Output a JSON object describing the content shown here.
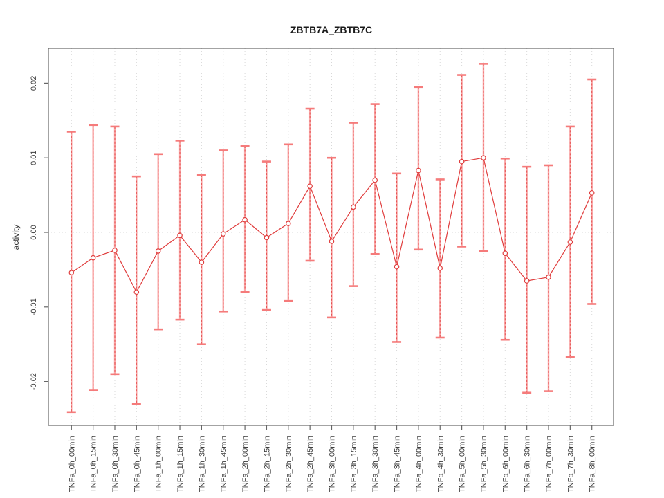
{
  "chart_data": {
    "type": "line",
    "title": "ZBTB7A_ZBTB7C",
    "xlabel": "",
    "ylabel": "activity",
    "ylim": [
      -0.025,
      0.024
    ],
    "yticks": [
      -0.02,
      -0.01,
      0.0,
      0.01,
      0.02
    ],
    "ytick_labels": [
      "-0.02",
      "-0.01",
      "0.00",
      "0.01",
      "0.02"
    ],
    "grid": "vertical dotted gridline at each category; dotted horizontal reference line at y=0",
    "legend": "none",
    "marker": "open-circle",
    "error_bars": true,
    "colors": {
      "series_line": "#e03c3c",
      "error_bar": "#f57b7b",
      "error_bar_fill": "#f9a8a8",
      "gridline": "#d8d8d8",
      "frame": "#666666",
      "tick_label": "#3d3d3d",
      "title": "#1a1a1a"
    },
    "categories": [
      "TNFa_0h_00min",
      "TNFa_0h_15min",
      "TNFa_0h_30min",
      "TNFa_0h_45min",
      "TNFa_1h_00min",
      "TNFa_1h_15min",
      "TNFa_1h_30min",
      "TNFa_1h_45min",
      "TNFa_2h_00min",
      "TNFa_2h_15min",
      "TNFa_2h_30min",
      "TNFa_2h_45min",
      "TNFa_3h_00min",
      "TNFa_3h_15min",
      "TNFa_3h_30min",
      "TNFa_3h_45min",
      "TNFa_4h_00min",
      "TNFa_4h_30min",
      "TNFa_5h_00min",
      "TNFa_5h_30min",
      "TNFa_6h_00min",
      "TNFa_6h_30min",
      "TNFa_7h_00min",
      "TNFa_7h_30min",
      "TNFa_8h_00min"
    ],
    "series": [
      {
        "name": "activity",
        "values": [
          -0.0054,
          -0.0034,
          -0.0024,
          -0.008,
          -0.0025,
          -0.0004,
          -0.004,
          -0.0002,
          0.0017,
          -0.0007,
          0.0012,
          0.0062,
          -0.0012,
          0.0034,
          0.007,
          -0.0046,
          0.0083,
          -0.0048,
          0.0095,
          0.01,
          -0.0028,
          -0.0065,
          -0.006,
          -0.0013,
          0.0053
        ],
        "upper": [
          0.0135,
          0.0144,
          0.0142,
          0.0075,
          0.0105,
          0.0123,
          0.0077,
          0.011,
          0.0116,
          0.0095,
          0.0118,
          0.0166,
          0.01,
          0.0147,
          0.0172,
          0.0079,
          0.0195,
          0.0071,
          0.0211,
          0.0226,
          0.0099,
          0.0088,
          0.009,
          0.0142,
          0.0205
        ],
        "lower": [
          -0.0241,
          -0.0212,
          -0.019,
          -0.023,
          -0.013,
          -0.0117,
          -0.015,
          -0.0106,
          -0.008,
          -0.0104,
          -0.0092,
          -0.0038,
          -0.0114,
          -0.0072,
          -0.0029,
          -0.0147,
          -0.0023,
          -0.0141,
          -0.0019,
          -0.0025,
          -0.0144,
          -0.0215,
          -0.0213,
          -0.0167,
          -0.0096
        ]
      }
    ]
  }
}
